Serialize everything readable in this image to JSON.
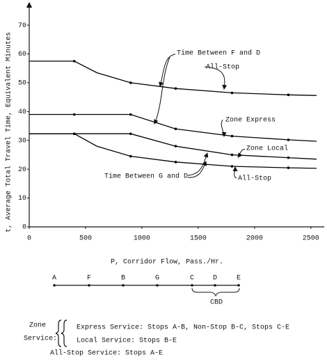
{
  "chart_data": {
    "type": "line",
    "x_label": "P, Corridor Flow, Pass./Hr.",
    "y_label": "t, Average Total Travel Time, Equivalent Minutes",
    "x": [
      0,
      400,
      600,
      900,
      1300,
      1800,
      2300,
      2550
    ],
    "series": [
      {
        "name": "All-Stop",
        "color": "#000000",
        "values": [
          57.5,
          57.5,
          53.5,
          50,
          48,
          46.5,
          45.8,
          45.6
        ]
      },
      {
        "name": "Zone Express",
        "color": "#000000",
        "values": [
          39,
          39,
          39,
          39,
          34,
          31.5,
          30.2,
          29.7
        ]
      },
      {
        "name": "Zone Local",
        "color": "#000000",
        "values": [
          32.3,
          32.3,
          32.3,
          32.3,
          28,
          25,
          24,
          23.5
        ]
      },
      {
        "name": "All-Stop",
        "color": "#000000",
        "values": [
          32.3,
          32.3,
          28,
          24.5,
          22.5,
          21,
          20.5,
          20.3
        ]
      }
    ],
    "annotations": [
      "Time Between F and D",
      "Time Between G and D"
    ],
    "xlim": [
      0,
      2600
    ],
    "ylim": [
      0,
      78
    ],
    "xticks": [
      0,
      500,
      1000,
      1500,
      2000,
      2500
    ],
    "yticks": [
      0,
      10,
      20,
      30,
      40,
      50,
      60,
      70
    ]
  },
  "diagram": {
    "stations": [
      "A",
      "F",
      "B",
      "G",
      "C",
      "D",
      "E"
    ],
    "cbd": "CBD",
    "zone_label": [
      "Zone",
      "Service:"
    ],
    "zone_services": [
      "Express Service:  Stops A-B, Non-Stop B-C, Stops C-E",
      "Local Service:  Stops B-E"
    ],
    "all_stop": "All-Stop Service:  Stops A-E"
  }
}
